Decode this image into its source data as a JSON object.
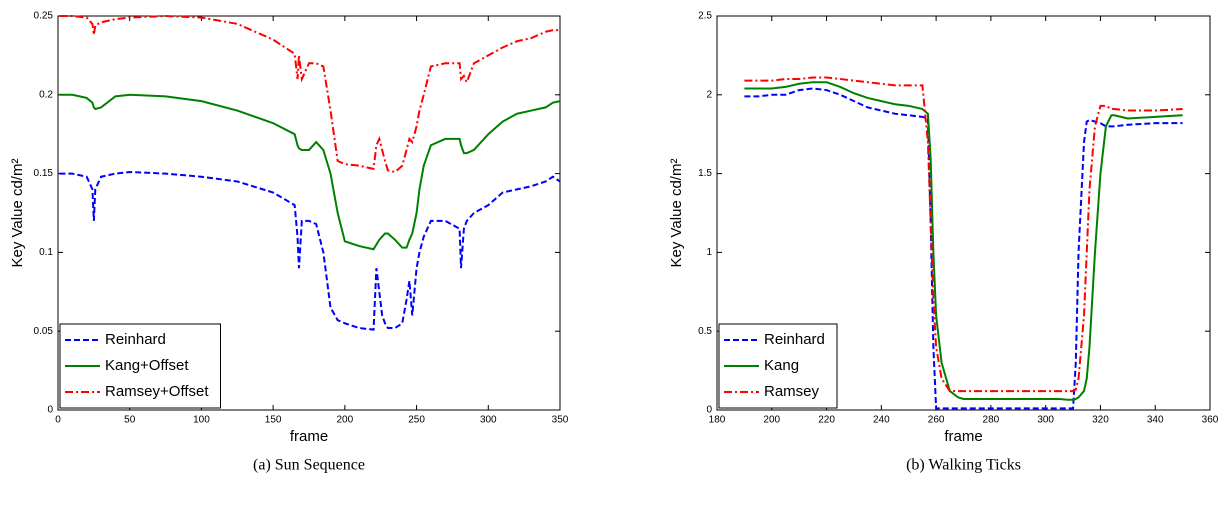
{
  "chart_data": [
    {
      "type": "line",
      "caption": "(a) Sun Sequence",
      "xlabel": "frame",
      "ylabel": "Key Value cd/m²",
      "xlim": [
        0,
        350
      ],
      "xticks": [
        0,
        50,
        100,
        150,
        200,
        250,
        300,
        350
      ],
      "ylim": [
        0,
        0.25
      ],
      "yticks": [
        0,
        0.05,
        0.1,
        0.15,
        0.2,
        0.25
      ],
      "legend": "lower left",
      "x": [
        1,
        10,
        20,
        24,
        25,
        26,
        30,
        40,
        50,
        75,
        100,
        125,
        150,
        165,
        167,
        168,
        170,
        175,
        180,
        185,
        190,
        195,
        200,
        210,
        220,
        222,
        224,
        226,
        228,
        230,
        235,
        240,
        243,
        245,
        247,
        250,
        252,
        255,
        260,
        270,
        280,
        281,
        283,
        285,
        290,
        300,
        310,
        320,
        330,
        340,
        345,
        350
      ],
      "series": [
        {
          "name": "Reinhard",
          "color": "#0000ff",
          "style": "dashed",
          "values": [
            0.15,
            0.15,
            0.148,
            0.14,
            0.12,
            0.14,
            0.148,
            0.15,
            0.151,
            0.15,
            0.148,
            0.145,
            0.138,
            0.13,
            0.11,
            0.09,
            0.12,
            0.12,
            0.118,
            0.1,
            0.065,
            0.057,
            0.055,
            0.052,
            0.051,
            0.09,
            0.075,
            0.06,
            0.055,
            0.052,
            0.052,
            0.055,
            0.07,
            0.082,
            0.06,
            0.09,
            0.1,
            0.11,
            0.12,
            0.12,
            0.115,
            0.09,
            0.115,
            0.12,
            0.125,
            0.13,
            0.138,
            0.14,
            0.142,
            0.145,
            0.148,
            0.145
          ]
        },
        {
          "name": "Kang+Offset",
          "color": "#008000",
          "style": "solid",
          "values": [
            0.2,
            0.2,
            0.198,
            0.195,
            0.192,
            0.191,
            0.192,
            0.199,
            0.2,
            0.199,
            0.196,
            0.19,
            0.182,
            0.175,
            0.168,
            0.166,
            0.165,
            0.165,
            0.17,
            0.165,
            0.15,
            0.125,
            0.107,
            0.104,
            0.102,
            0.105,
            0.108,
            0.11,
            0.112,
            0.112,
            0.108,
            0.103,
            0.103,
            0.108,
            0.112,
            0.125,
            0.14,
            0.155,
            0.168,
            0.172,
            0.172,
            0.168,
            0.163,
            0.163,
            0.165,
            0.175,
            0.183,
            0.188,
            0.19,
            0.192,
            0.195,
            0.196
          ]
        },
        {
          "name": "Ramsey+Offset",
          "color": "#ff0000",
          "style": "dashdot",
          "values": [
            0.25,
            0.25,
            0.249,
            0.245,
            0.238,
            0.244,
            0.246,
            0.248,
            0.249,
            0.25,
            0.249,
            0.245,
            0.235,
            0.226,
            0.21,
            0.225,
            0.21,
            0.22,
            0.22,
            0.218,
            0.19,
            0.158,
            0.156,
            0.155,
            0.153,
            0.168,
            0.172,
            0.165,
            0.158,
            0.152,
            0.151,
            0.155,
            0.165,
            0.172,
            0.17,
            0.18,
            0.19,
            0.2,
            0.218,
            0.22,
            0.22,
            0.21,
            0.212,
            0.208,
            0.22,
            0.225,
            0.23,
            0.234,
            0.236,
            0.24,
            0.241,
            0.241
          ]
        }
      ]
    },
    {
      "type": "line",
      "caption": "(b) Walking Ticks",
      "xlabel": "frame",
      "ylabel": "Key Value cd/m²",
      "xlim": [
        180,
        360
      ],
      "xticks": [
        180,
        200,
        220,
        240,
        260,
        280,
        300,
        320,
        340,
        360
      ],
      "ylim": [
        0,
        2.5
      ],
      "yticks": [
        0,
        0.5,
        1,
        1.5,
        2,
        2.5
      ],
      "legend": "lower left",
      "x": [
        190,
        195,
        200,
        205,
        210,
        215,
        220,
        225,
        230,
        235,
        240,
        245,
        250,
        255,
        257,
        258,
        259,
        260,
        262,
        265,
        268,
        270,
        275,
        280,
        290,
        300,
        305,
        308,
        310,
        311,
        312,
        314,
        315,
        316,
        318,
        320,
        322,
        324,
        325,
        330,
        340,
        350
      ],
      "series": [
        {
          "name": "Reinhard",
          "color": "#0000ff",
          "style": "dashed",
          "values": [
            1.99,
            1.99,
            2.0,
            2.0,
            2.03,
            2.04,
            2.03,
            2.0,
            1.96,
            1.92,
            1.9,
            1.88,
            1.87,
            1.86,
            1.85,
            1.2,
            0.4,
            0.01,
            0.01,
            0.01,
            0.01,
            0.01,
            0.01,
            0.01,
            0.01,
            0.01,
            0.01,
            0.01,
            0.01,
            0.3,
            1.0,
            1.7,
            1.83,
            1.84,
            1.83,
            1.82,
            1.8,
            1.8,
            1.8,
            1.81,
            1.82,
            1.82
          ]
        },
        {
          "name": "Kang",
          "color": "#008000",
          "style": "solid",
          "values": [
            2.04,
            2.04,
            2.04,
            2.05,
            2.07,
            2.08,
            2.08,
            2.05,
            2.01,
            1.98,
            1.96,
            1.94,
            1.93,
            1.91,
            1.88,
            1.6,
            1.0,
            0.6,
            0.3,
            0.12,
            0.08,
            0.07,
            0.07,
            0.07,
            0.07,
            0.07,
            0.07,
            0.065,
            0.065,
            0.07,
            0.08,
            0.12,
            0.2,
            0.4,
            1.0,
            1.5,
            1.8,
            1.87,
            1.87,
            1.85,
            1.86,
            1.87
          ]
        },
        {
          "name": "Ramsey",
          "color": "#ff0000",
          "style": "dashdot",
          "values": [
            2.09,
            2.09,
            2.09,
            2.1,
            2.1,
            2.11,
            2.11,
            2.1,
            2.09,
            2.08,
            2.07,
            2.06,
            2.06,
            2.06,
            1.7,
            1.2,
            0.7,
            0.4,
            0.2,
            0.12,
            0.12,
            0.12,
            0.12,
            0.12,
            0.12,
            0.12,
            0.12,
            0.12,
            0.12,
            0.13,
            0.2,
            0.6,
            1.0,
            1.4,
            1.8,
            1.93,
            1.93,
            1.91,
            1.91,
            1.9,
            1.9,
            1.91
          ]
        }
      ]
    }
  ]
}
